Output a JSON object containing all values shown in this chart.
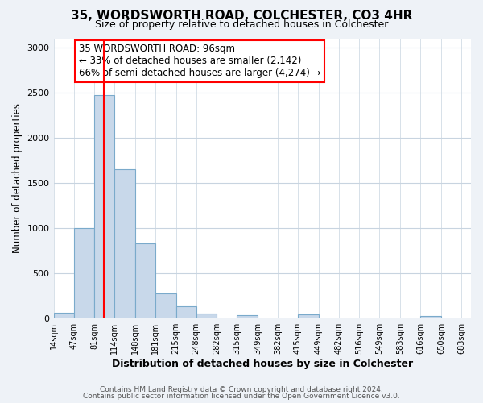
{
  "title": "35, WORDSWORTH ROAD, COLCHESTER, CO3 4HR",
  "subtitle": "Size of property relative to detached houses in Colchester",
  "xlabel": "Distribution of detached houses by size in Colchester",
  "ylabel": "Number of detached properties",
  "bar_color": "#c8d8ea",
  "bar_edge_color": "#7aaacb",
  "bar_left_edges": [
    14,
    47,
    81,
    114,
    148,
    181,
    215,
    248,
    282,
    315,
    349,
    382,
    415,
    449,
    482,
    516,
    549,
    583,
    616,
    650
  ],
  "bar_widths": [
    33,
    34,
    33,
    34,
    33,
    34,
    33,
    34,
    33,
    34,
    33,
    33,
    34,
    33,
    34,
    33,
    34,
    33,
    34,
    33
  ],
  "bar_heights": [
    60,
    1000,
    2470,
    1650,
    830,
    275,
    130,
    55,
    0,
    35,
    0,
    0,
    45,
    0,
    0,
    0,
    0,
    0,
    25,
    0
  ],
  "xtick_labels": [
    "14sqm",
    "47sqm",
    "81sqm",
    "114sqm",
    "148sqm",
    "181sqm",
    "215sqm",
    "248sqm",
    "282sqm",
    "315sqm",
    "349sqm",
    "382sqm",
    "415sqm",
    "449sqm",
    "482sqm",
    "516sqm",
    "549sqm",
    "583sqm",
    "616sqm",
    "650sqm",
    "683sqm"
  ],
  "ylim": [
    0,
    3100
  ],
  "yticks": [
    0,
    500,
    1000,
    1500,
    2000,
    2500,
    3000
  ],
  "red_line_x": 96,
  "annotation_title": "35 WORDSWORTH ROAD: 96sqm",
  "annotation_line1": "← 33% of detached houses are smaller (2,142)",
  "annotation_line2": "66% of semi-detached houses are larger (4,274) →",
  "footer_line1": "Contains HM Land Registry data © Crown copyright and database right 2024.",
  "footer_line2": "Contains public sector information licensed under the Open Government Licence v3.0.",
  "background_color": "#eef2f7",
  "plot_background_color": "#ffffff",
  "grid_color": "#c8d4e0"
}
